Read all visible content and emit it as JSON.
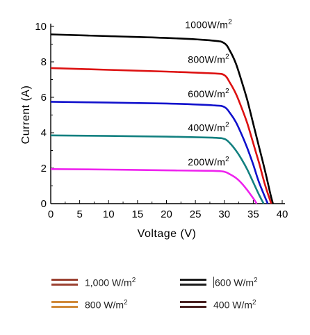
{
  "chart_data": {
    "type": "line",
    "xlabel": "Voltage (V)",
    "ylabel": "Current (A)",
    "xlim": [
      0,
      40
    ],
    "ylim": [
      0,
      10
    ],
    "xticks": [
      "0",
      "5",
      "10",
      "15",
      "20",
      "25",
      "30",
      "35",
      "40"
    ],
    "yticks": [
      "0",
      "2",
      "4",
      "6",
      "8",
      "10"
    ],
    "series": [
      {
        "name": "1000W/m",
        "sup": "2",
        "color": "#000000",
        "x": [
          0,
          10,
          20,
          28,
          30,
          31,
          32,
          33,
          34,
          35,
          36,
          37,
          38,
          38.4
        ],
        "y": [
          9.55,
          9.45,
          9.35,
          9.2,
          9.05,
          8.6,
          7.9,
          6.9,
          5.8,
          4.5,
          3.2,
          1.9,
          0.5,
          0
        ]
      },
      {
        "name": "800W/m",
        "sup": "2",
        "color": "#dd1111",
        "x": [
          0,
          10,
          20,
          28,
          30,
          31,
          32,
          33,
          34,
          35,
          36,
          37,
          38.1
        ],
        "y": [
          7.65,
          7.55,
          7.45,
          7.35,
          7.25,
          6.8,
          6.2,
          5.4,
          4.5,
          3.4,
          2.3,
          1.1,
          0
        ]
      },
      {
        "name": "600W/m",
        "sup": "2",
        "color": "#1010cc",
        "x": [
          0,
          10,
          20,
          28,
          30,
          31,
          32,
          33,
          34,
          35,
          36,
          37.5
        ],
        "y": [
          5.75,
          5.7,
          5.65,
          5.55,
          5.45,
          5.1,
          4.6,
          3.9,
          3.1,
          2.2,
          1.2,
          0
        ]
      },
      {
        "name": "400W/m",
        "sup": "2",
        "color": "#128080",
        "x": [
          0,
          10,
          20,
          28,
          30,
          31,
          32,
          33,
          34,
          35,
          36,
          36.8
        ],
        "y": [
          3.85,
          3.82,
          3.78,
          3.72,
          3.65,
          3.4,
          3.0,
          2.5,
          1.9,
          1.2,
          0.5,
          0
        ]
      },
      {
        "name": "200W/m",
        "sup": "2",
        "color": "#ee22ee",
        "x": [
          0,
          10,
          20,
          28,
          30,
          31,
          32,
          33,
          34,
          35,
          35.6
        ],
        "y": [
          1.95,
          1.92,
          1.88,
          1.85,
          1.8,
          1.65,
          1.45,
          1.15,
          0.75,
          0.3,
          0
        ]
      }
    ],
    "curve_labels": [
      {
        "text": "1000W/m",
        "sup": "2",
        "at": [
          22,
          9.9
        ]
      },
      {
        "text": "800W/m",
        "sup": "2",
        "at": [
          22,
          7.95
        ]
      },
      {
        "text": "600W/m",
        "sup": "2",
        "at": [
          22,
          6.0
        ]
      },
      {
        "text": "400W/m",
        "sup": "2",
        "at": [
          22,
          4.1
        ]
      },
      {
        "text": "200W/m",
        "sup": "2",
        "at": [
          22,
          2.15
        ]
      }
    ],
    "grid": false
  },
  "legend": {
    "items": [
      {
        "label": "1,000 W/m",
        "sup": "2",
        "color": "#9a4030"
      },
      {
        "label": "600 W/m",
        "sup": "2",
        "color": "#1a1a1a",
        "cursor": true
      },
      {
        "label": "800 W/m",
        "sup": "2",
        "color": "#d08a3a"
      },
      {
        "label": "400 W/m",
        "sup": "2",
        "color": "#4a2222"
      }
    ]
  }
}
